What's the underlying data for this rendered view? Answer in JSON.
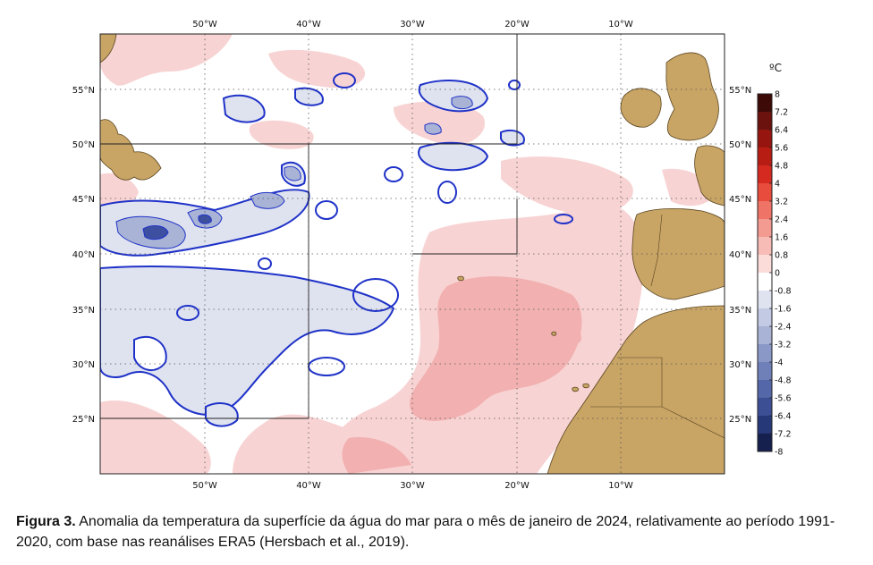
{
  "map": {
    "lon_labels": [
      "50°W",
      "40°W",
      "30°W",
      "20°W",
      "10°W"
    ],
    "lat_labels": [
      "55°N",
      "50°N",
      "45°N",
      "40°N",
      "35°N",
      "30°N",
      "25°N"
    ],
    "colors": {
      "ocean_neutral": "#ffffff",
      "land": "#c8a465",
      "positive_light": "#f8d3d3",
      "positive_mid": "#f2b0b0",
      "positive_strong": "#e03a2e",
      "negative_light": "#dfe3ef",
      "negative_mid": "#a9b3d6",
      "negative_strong": "#3c4fa0",
      "contour_negative": "#1f32c8"
    }
  },
  "colorbar": {
    "unit": "ºC",
    "ticks": [
      "8",
      "7.2",
      "6.4",
      "5.6",
      "4.8",
      "4",
      "3.2",
      "2.4",
      "1.6",
      "0.8",
      "0",
      "-0.8",
      "-1.6",
      "-2.4",
      "-3.2",
      "-4",
      "-4.8",
      "-5.6",
      "-6.4",
      "-7.2",
      "-8"
    ],
    "colors": [
      "#3d0a08",
      "#6b120e",
      "#96160f",
      "#b81d14",
      "#d52a20",
      "#e74c3c",
      "#ef7467",
      "#f39a91",
      "#f7bcb6",
      "#fbdcd9",
      "#ffffff",
      "#dfe3ef",
      "#c3cae4",
      "#a9b3d6",
      "#8a98c8",
      "#6f7fb8",
      "#5467a8",
      "#3c4f95",
      "#263877",
      "#15204f"
    ]
  },
  "caption": {
    "label": "Figura 3.",
    "text": " Anomalia da temperatura da superfície da água do mar para o mês de janeiro de 2024, relativamente ao período 1991-2020, com base nas reanálises ERA5 (Hersbach et al., 2019)."
  }
}
